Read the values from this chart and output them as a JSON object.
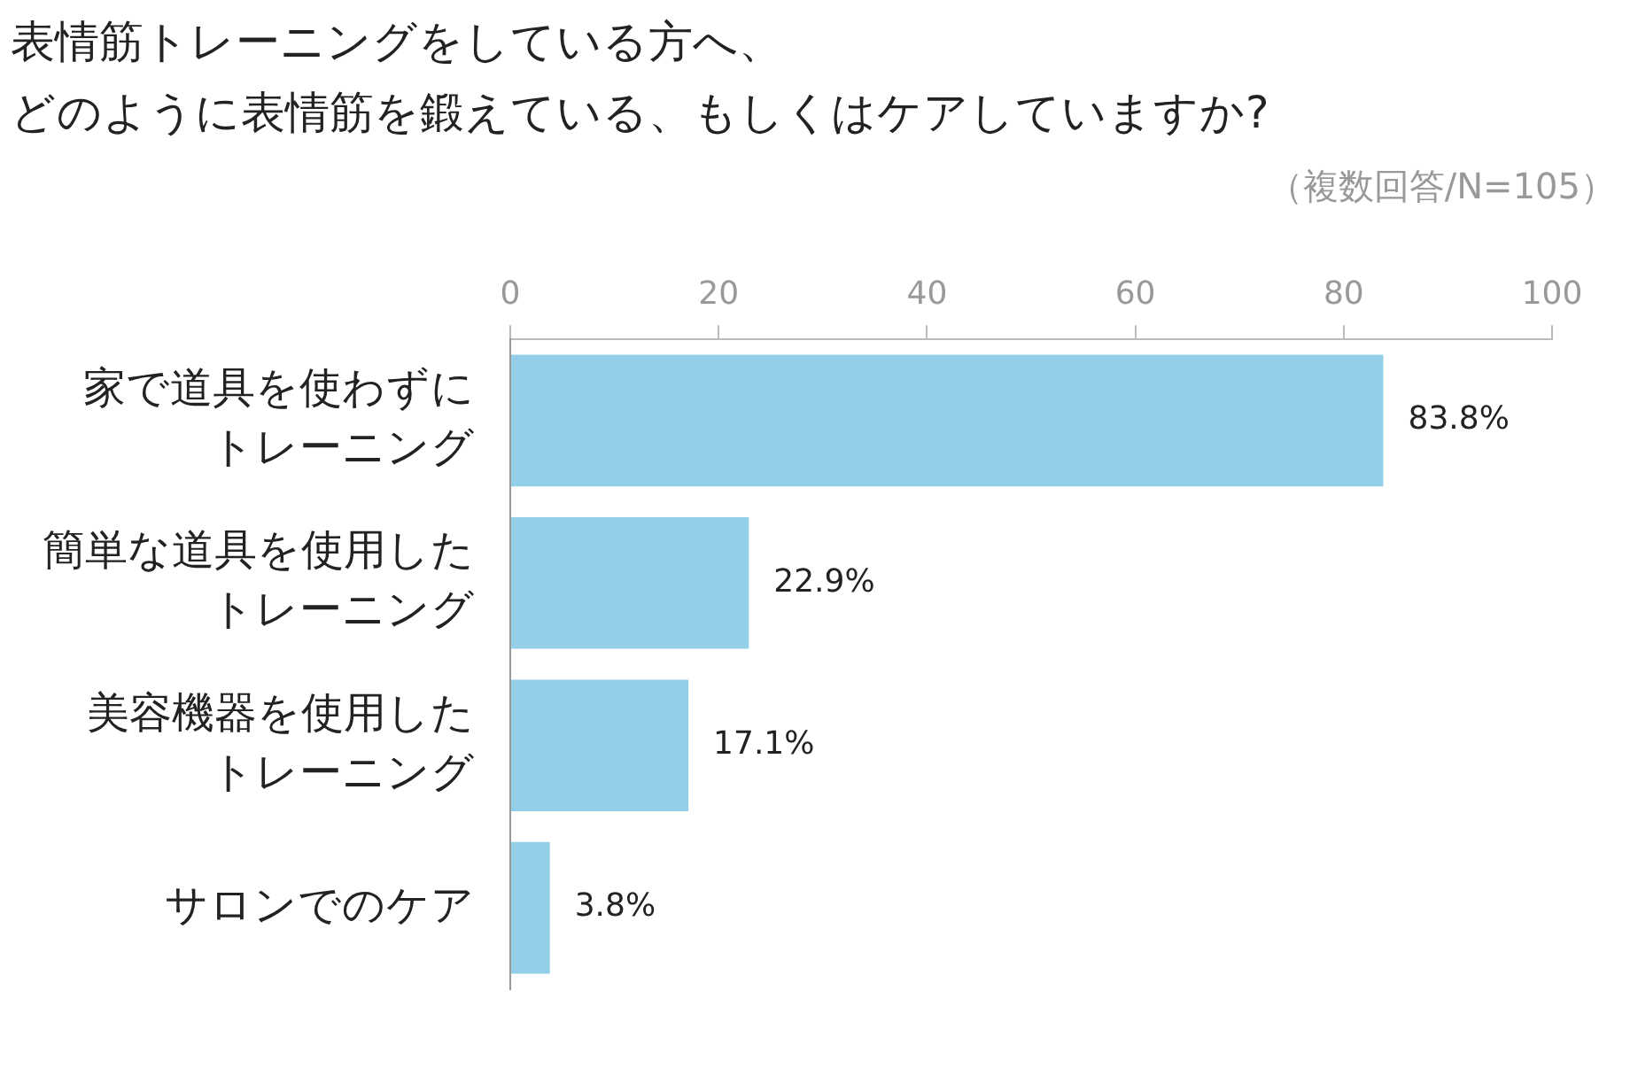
{
  "chart_data": {
    "type": "bar",
    "orientation": "horizontal",
    "title": "表情筋トレーニングをしている方へ、どのように表情筋を鍛えている、もしくはケアしていますか?",
    "subtitle": "（複数回答/N=105）",
    "categories": [
      "家で道具を使わずにトレーニング",
      "簡単な道具を使用したトレーニング",
      "美容機器を使用したトレーニング",
      "サロンでのケア"
    ],
    "values": [
      83.8,
      22.9,
      17.1,
      3.8
    ],
    "color": "#93cfe8",
    "value_labels": [
      "83.8%",
      "22.9%",
      "17.1%",
      "3.8%"
    ],
    "xlim": [
      0,
      100
    ],
    "xticks": [
      0,
      20,
      40,
      60,
      80,
      100
    ],
    "grid": false,
    "legend": false
  }
}
